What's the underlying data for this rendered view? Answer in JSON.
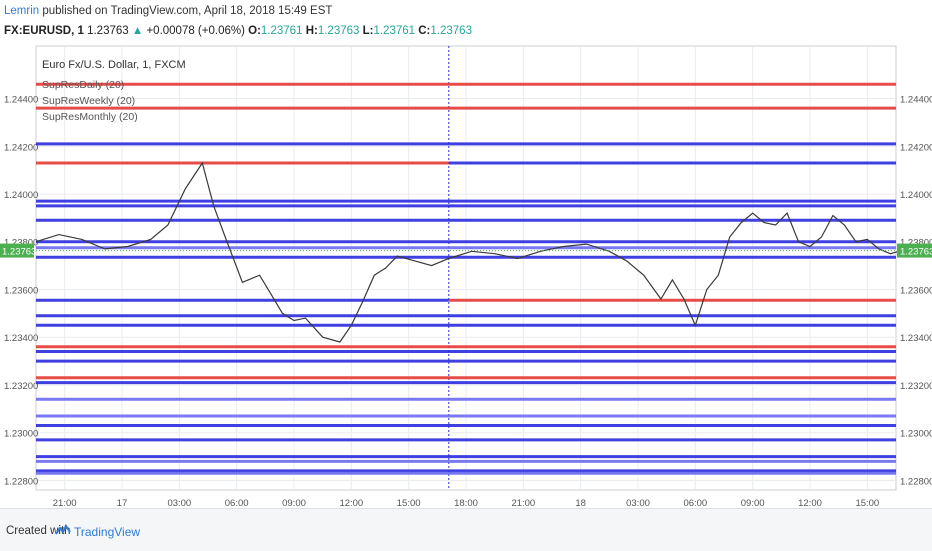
{
  "header": {
    "author": "Lemrin",
    "published": "published on TradingView.com, April 18, 2018 15:49 EST",
    "symbol": "FX:EURUSD, 1",
    "last": "1.23763",
    "change_arrow": "▲",
    "change": "+0.00078 (+0.06%)",
    "o_label": "O:",
    "o_value": "1.23761",
    "h_label": "H:",
    "h_value": "1.23763",
    "l_label": "L:",
    "l_value": "1.23761",
    "c_label": "C:",
    "c_value": "1.23763"
  },
  "footer": {
    "created_with": "Created with",
    "brand": "TradingView",
    "logo_icon": "tradingview-logo-icon"
  },
  "colors": {
    "price": "#3a3a3a",
    "support_red": "#e53935",
    "support_blue": "#2a2adf",
    "support_light_blue": "#6a6af0",
    "last_price_bg": "#4caf50",
    "axis_text": "#555555",
    "grid": "#e9ecef"
  },
  "chart_data": {
    "type": "line",
    "title": "Euro Fx/U.S. Dollar, 1, FXCM",
    "legend": [
      "SupResDaily (20)",
      "SupResWeekly (20)",
      "SupResMonthly (20)"
    ],
    "x_ticks": [
      "21:00",
      "17",
      "03:00",
      "06:00",
      "09:00",
      "12:00",
      "15:00",
      "18:00",
      "21:00",
      "18",
      "03:00",
      "06:00",
      "09:00",
      "12:00",
      "15:00"
    ],
    "x_range": [
      0,
      15
    ],
    "y_ticks": [
      "1.24400",
      "1.24200",
      "1.24000",
      "1.23800",
      "1.23600",
      "1.23400",
      "1.23200",
      "1.23000",
      "1.22800"
    ],
    "ylim": [
      1.2276,
      1.2462
    ],
    "last_price_label": "1.23763",
    "price_series": {
      "name": "EURUSD",
      "x": [
        0,
        0.4,
        0.8,
        1.2,
        1.6,
        2.0,
        2.3,
        2.6,
        2.9,
        3.1,
        3.3,
        3.6,
        3.9,
        4.1,
        4.3,
        4.5,
        4.7,
        5.0,
        5.3,
        5.5,
        5.7,
        5.9,
        6.1,
        6.3,
        6.6,
        6.9,
        7.2,
        7.6,
        8.0,
        8.4,
        8.8,
        9.2,
        9.6,
        10.0,
        10.3,
        10.6,
        10.9,
        11.1,
        11.3,
        11.5,
        11.7,
        11.9,
        12.1,
        12.3,
        12.5,
        12.7,
        12.9,
        13.1,
        13.3,
        13.5,
        13.7,
        13.9,
        14.1,
        14.3,
        14.5,
        14.7,
        14.9,
        15.1
      ],
      "values": [
        1.238,
        1.2383,
        1.2381,
        1.2377,
        1.2378,
        1.2381,
        1.2387,
        1.2402,
        1.2413,
        1.2395,
        1.2382,
        1.2363,
        1.2366,
        1.2358,
        1.235,
        1.2347,
        1.2348,
        1.234,
        1.2338,
        1.2345,
        1.2355,
        1.2366,
        1.2369,
        1.2374,
        1.2372,
        1.237,
        1.2373,
        1.2376,
        1.2375,
        1.2373,
        1.2376,
        1.2378,
        1.2379,
        1.2376,
        1.2372,
        1.2366,
        1.2356,
        1.2364,
        1.2356,
        1.2345,
        1.236,
        1.2366,
        1.2382,
        1.2388,
        1.2392,
        1.2388,
        1.2387,
        1.2392,
        1.238,
        1.2378,
        1.2382,
        1.2391,
        1.2387,
        1.238,
        1.2381,
        1.2377,
        1.2375,
        1.23763
      ]
    },
    "levels": [
      {
        "price": 1.2446,
        "color": "red",
        "from": 0,
        "to": 15
      },
      {
        "price": 1.2436,
        "color": "red",
        "from": 0,
        "to": 15
      },
      {
        "price": 1.2421,
        "color": "blue",
        "from": 0,
        "to": 15
      },
      {
        "price": 1.2413,
        "color": "red",
        "from": 0,
        "to": 7.2
      },
      {
        "price": 1.2413,
        "color": "blue",
        "from": 7.2,
        "to": 15
      },
      {
        "price": 1.2397,
        "color": "blue",
        "from": 0,
        "to": 15
      },
      {
        "price": 1.2395,
        "color": "blue",
        "from": 0,
        "to": 15
      },
      {
        "price": 1.2389,
        "color": "blue",
        "from": 0,
        "to": 15
      },
      {
        "price": 1.238,
        "color": "blue",
        "from": 0,
        "to": 15
      },
      {
        "price": 1.23775,
        "color": "light",
        "from": 0,
        "to": 15
      },
      {
        "price": 1.23735,
        "color": "blue",
        "from": 0,
        "to": 15
      },
      {
        "price": 1.23555,
        "color": "blue",
        "from": 0,
        "to": 7.2
      },
      {
        "price": 1.23555,
        "color": "red",
        "from": 7.2,
        "to": 15
      },
      {
        "price": 1.2349,
        "color": "blue",
        "from": 0,
        "to": 15
      },
      {
        "price": 1.2345,
        "color": "blue",
        "from": 0,
        "to": 15
      },
      {
        "price": 1.2336,
        "color": "red",
        "from": 0,
        "to": 15
      },
      {
        "price": 1.2334,
        "color": "blue",
        "from": 0,
        "to": 15
      },
      {
        "price": 1.233,
        "color": "blue",
        "from": 0,
        "to": 15
      },
      {
        "price": 1.2323,
        "color": "red",
        "from": 0,
        "to": 15
      },
      {
        "price": 1.2321,
        "color": "blue",
        "from": 0,
        "to": 15
      },
      {
        "price": 1.2314,
        "color": "light",
        "from": 0,
        "to": 15
      },
      {
        "price": 1.2307,
        "color": "light",
        "from": 0,
        "to": 15
      },
      {
        "price": 1.2303,
        "color": "blue",
        "from": 0,
        "to": 15
      },
      {
        "price": 1.2297,
        "color": "blue",
        "from": 0,
        "to": 15
      },
      {
        "price": 1.229,
        "color": "blue",
        "from": 0,
        "to": 15
      },
      {
        "price": 1.2288,
        "color": "light",
        "from": 0,
        "to": 15
      },
      {
        "price": 1.2284,
        "color": "blue",
        "from": 0,
        "to": 15
      },
      {
        "price": 1.2283,
        "color": "light",
        "from": 0,
        "to": 15
      }
    ]
  }
}
